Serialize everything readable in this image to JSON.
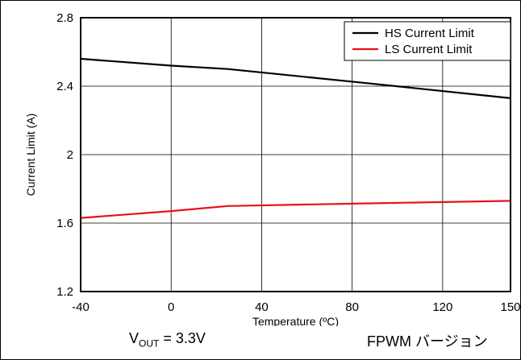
{
  "chart_data": {
    "type": "line",
    "xlabel": "Temperature (ºC)",
    "ylabel": "Current Limit (A)",
    "xlim": [
      -40,
      150
    ],
    "ylim": [
      1.2,
      2.8
    ],
    "xticks": [
      "-40",
      "0",
      "40",
      "80",
      "120",
      "150"
    ],
    "xtick_values": [
      -40,
      0,
      40,
      80,
      120,
      150
    ],
    "yticks": [
      "1.2",
      "1.6",
      "2",
      "2.4",
      "2.8"
    ],
    "ytick_values": [
      1.2,
      1.6,
      2.0,
      2.4,
      2.8
    ],
    "grid": true,
    "legend_position": "top-right",
    "series": [
      {
        "name": "HS Current Limit",
        "color": "#000000",
        "x": [
          -40,
          0,
          25,
          85,
          150
        ],
        "y": [
          2.56,
          2.52,
          2.5,
          2.42,
          2.33
        ]
      },
      {
        "name": "LS Current Limit",
        "color": "#e8111a",
        "x": [
          -40,
          0,
          25,
          85,
          150
        ],
        "y": [
          1.63,
          1.67,
          1.7,
          1.715,
          1.73
        ]
      }
    ]
  },
  "caption": {
    "vout_prefix": "V",
    "vout_sub": "OUT",
    "vout_value": " = 3.3V",
    "mode": "FPWM バージョン"
  }
}
